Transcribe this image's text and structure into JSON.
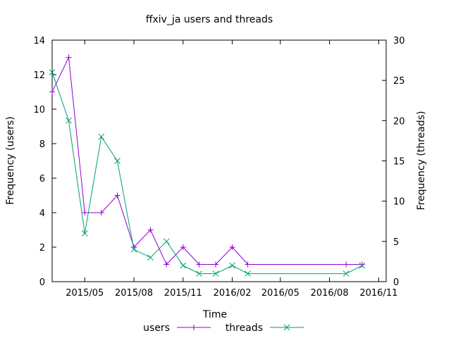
{
  "chart_data": {
    "type": "line",
    "title": "ffxiv_ja users and threads",
    "xlabel": "Time",
    "ylabel": "Frequency (users)",
    "y2label": "Frequency (threads)",
    "x_ticks": [
      "2015/05",
      "2015/08",
      "2015/11",
      "2016/02",
      "2016/05",
      "2016/08",
      "2016/11"
    ],
    "xlim": [
      "2015-03-01",
      "2016-11-15"
    ],
    "ylim": [
      0,
      14
    ],
    "y_ticks": [
      "0",
      "2",
      "4",
      "6",
      "8",
      "10",
      "12",
      "14"
    ],
    "y2lim": [
      0,
      30
    ],
    "y2_ticks": [
      "0",
      "5",
      "10",
      "15",
      "20",
      "25",
      "30"
    ],
    "grid": false,
    "legend_position": "bottom-center",
    "series": [
      {
        "name": "users",
        "axis": "y",
        "color": "#9400d3",
        "marker": "plus",
        "x": [
          "2015-03-01",
          "2015-04-01",
          "2015-05-01",
          "2015-06-01",
          "2015-07-01",
          "2015-08-01",
          "2015-09-01",
          "2015-10-01",
          "2015-11-01",
          "2015-12-01",
          "2016-01-01",
          "2016-02-01",
          "2016-03-01",
          "2016-09-01",
          "2016-10-01"
        ],
        "values": [
          11,
          13,
          4,
          4,
          5,
          2,
          3,
          1,
          2,
          1,
          1,
          2,
          1,
          1,
          1
        ]
      },
      {
        "name": "threads",
        "axis": "y2",
        "color": "#009e73",
        "marker": "cross",
        "x": [
          "2015-03-01",
          "2015-04-01",
          "2015-05-01",
          "2015-06-01",
          "2015-07-01",
          "2015-08-01",
          "2015-09-01",
          "2015-10-01",
          "2015-11-01",
          "2015-12-01",
          "2016-01-01",
          "2016-02-01",
          "2016-03-01",
          "2016-09-01",
          "2016-10-01"
        ],
        "values": [
          26,
          20,
          6,
          18,
          15,
          4,
          3,
          5,
          2,
          1,
          1,
          2,
          1,
          1,
          2
        ]
      }
    ]
  }
}
